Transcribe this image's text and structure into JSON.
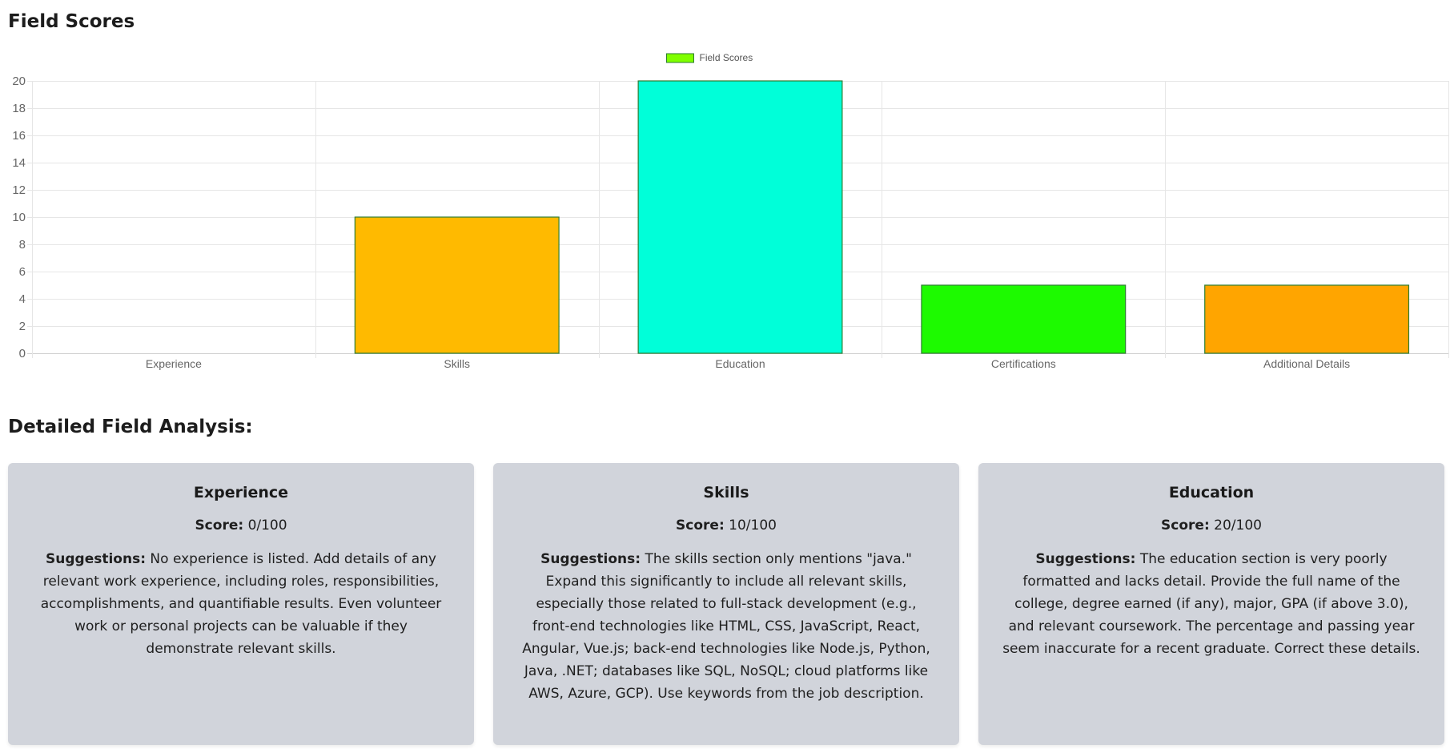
{
  "page": {
    "title": "Field Scores",
    "detail_title": "Detailed Field Analysis:"
  },
  "chart_data": {
    "type": "bar",
    "categories": [
      "Experience",
      "Skills",
      "Education",
      "Certifications",
      "Additional Details"
    ],
    "series": [
      {
        "name": "Field Scores",
        "values": [
          0,
          10,
          20,
          5,
          5
        ]
      }
    ],
    "bar_colors": [
      "#ff6384",
      "#ffba00",
      "#00ffd9",
      "#1dfa00",
      "#ffa500"
    ],
    "legend_color": "#7fff00",
    "bar_border_color": "#2e7d32",
    "ylim": [
      0,
      20
    ],
    "yticks": [
      0,
      2,
      4,
      6,
      8,
      10,
      12,
      14,
      16,
      18,
      20
    ],
    "grid": true,
    "legend_position": "top-center"
  },
  "cards": [
    {
      "title": "Experience",
      "score_label": "Score:",
      "score_value": "0/100",
      "sugg_label": "Suggestions:",
      "sugg_text": "No experience is listed. Add details of any relevant work experience, including roles, responsibilities, accomplishments, and quantifiable results. Even volunteer work or personal projects can be valuable if they demonstrate relevant skills."
    },
    {
      "title": "Skills",
      "score_label": "Score:",
      "score_value": "10/100",
      "sugg_label": "Suggestions:",
      "sugg_text": "The skills section only mentions \"java.\" Expand this significantly to include all relevant skills, especially those related to full-stack development (e.g., front-end technologies like HTML, CSS, JavaScript, React, Angular, Vue.js; back-end technologies like Node.js, Python, Java, .NET; databases like SQL, NoSQL; cloud platforms like AWS, Azure, GCP). Use keywords from the job description."
    },
    {
      "title": "Education",
      "score_label": "Score:",
      "score_value": "20/100",
      "sugg_label": "Suggestions:",
      "sugg_text": "The education section is very poorly formatted and lacks detail. Provide the full name of the college, degree earned (if any), major, GPA (if above 3.0), and relevant coursework. The percentage and passing year seem inaccurate for a recent graduate. Correct these details."
    }
  ]
}
